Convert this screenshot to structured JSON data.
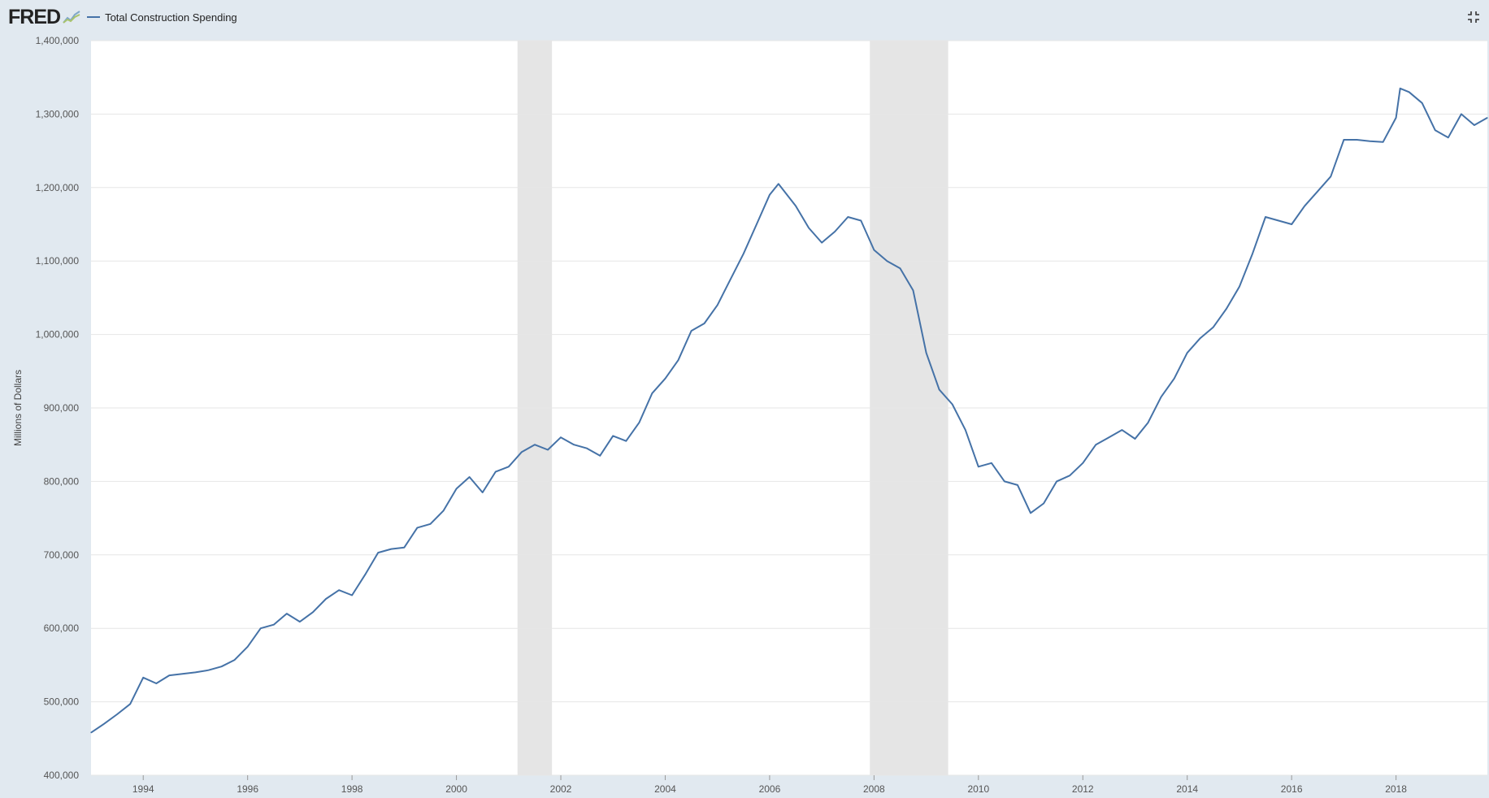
{
  "header": {
    "logo_text": "FRED",
    "logo_icon": "chart-trend-icon",
    "fullscreen_icon": "collapse-icon"
  },
  "colors": {
    "series": "#4572a7",
    "background": "#e1e9f0",
    "plot": "#ffffff",
    "recession": "#e5e5e5",
    "grid": "#e6e6e6"
  },
  "chart_data": {
    "type": "line",
    "title": "",
    "xlabel": "",
    "ylabel": "Millions of Dollars",
    "xlim": [
      1993.0,
      2019.75
    ],
    "ylim": [
      400000,
      1400000
    ],
    "yticks": [
      400000,
      500000,
      600000,
      700000,
      800000,
      900000,
      1000000,
      1100000,
      1200000,
      1300000,
      1400000
    ],
    "ytick_labels": [
      "400,000",
      "500,000",
      "600,000",
      "700,000",
      "800,000",
      "900,000",
      "1,000,000",
      "1,100,000",
      "1,200,000",
      "1,300,000",
      "1,400,000"
    ],
    "xticks": [
      1994,
      1996,
      1998,
      2000,
      2002,
      2004,
      2006,
      2008,
      2010,
      2012,
      2014,
      2016,
      2018
    ],
    "xtick_labels": [
      "1994",
      "1996",
      "1998",
      "2000",
      "2002",
      "2004",
      "2006",
      "2008",
      "2010",
      "2012",
      "2014",
      "2016",
      "2018"
    ],
    "grid": "horizontal",
    "legend": "top-left",
    "recessions": [
      [
        2001.17,
        2001.83
      ],
      [
        2007.92,
        2009.42
      ]
    ],
    "series": [
      {
        "name": "Total Construction Spending",
        "x": [
          1993.0,
          1993.25,
          1993.5,
          1993.75,
          1994.0,
          1994.25,
          1994.5,
          1994.75,
          1995.0,
          1995.25,
          1995.5,
          1995.75,
          1996.0,
          1996.25,
          1996.5,
          1996.75,
          1997.0,
          1997.25,
          1997.5,
          1997.75,
          1998.0,
          1998.25,
          1998.5,
          1998.75,
          1999.0,
          1999.25,
          1999.5,
          1999.75,
          2000.0,
          2000.25,
          2000.5,
          2000.75,
          2001.0,
          2001.25,
          2001.5,
          2001.75,
          2002.0,
          2002.25,
          2002.5,
          2002.75,
          2003.0,
          2003.25,
          2003.5,
          2003.75,
          2004.0,
          2004.25,
          2004.5,
          2004.75,
          2005.0,
          2005.25,
          2005.5,
          2005.75,
          2006.0,
          2006.17,
          2006.5,
          2006.75,
          2007.0,
          2007.25,
          2007.5,
          2007.75,
          2008.0,
          2008.25,
          2008.5,
          2008.75,
          2009.0,
          2009.25,
          2009.5,
          2009.75,
          2010.0,
          2010.25,
          2010.5,
          2010.75,
          2011.0,
          2011.25,
          2011.5,
          2011.75,
          2012.0,
          2012.25,
          2012.5,
          2012.75,
          2013.0,
          2013.25,
          2013.5,
          2013.75,
          2014.0,
          2014.25,
          2014.5,
          2014.75,
          2015.0,
          2015.25,
          2015.5,
          2015.75,
          2016.0,
          2016.25,
          2016.5,
          2016.75,
          2017.0,
          2017.25,
          2017.5,
          2017.75,
          2018.0,
          2018.08,
          2018.25,
          2018.5,
          2018.75,
          2019.0,
          2019.25,
          2019.5,
          2019.75
        ],
        "values": [
          458000,
          470000,
          483000,
          497000,
          533000,
          525000,
          536000,
          538000,
          540000,
          543000,
          548000,
          557000,
          575000,
          600000,
          605000,
          620000,
          609000,
          622000,
          640000,
          652000,
          645000,
          673000,
          703000,
          708000,
          710000,
          737000,
          742000,
          760000,
          790000,
          806000,
          785000,
          813000,
          820000,
          840000,
          850000,
          843000,
          860000,
          850000,
          845000,
          835000,
          862000,
          855000,
          880000,
          920000,
          940000,
          965000,
          1005000,
          1015000,
          1040000,
          1075000,
          1110000,
          1150000,
          1190000,
          1205000,
          1175000,
          1145000,
          1125000,
          1140000,
          1160000,
          1155000,
          1115000,
          1100000,
          1090000,
          1060000,
          975000,
          925000,
          905000,
          870000,
          820000,
          825000,
          800000,
          795000,
          757000,
          770000,
          800000,
          808000,
          825000,
          850000,
          860000,
          870000,
          858000,
          880000,
          915000,
          940000,
          975000,
          995000,
          1010000,
          1035000,
          1065000,
          1110000,
          1160000,
          1155000,
          1150000,
          1175000,
          1195000,
          1215000,
          1265000,
          1265000,
          1263000,
          1262000,
          1295000,
          1335000,
          1330000,
          1315000,
          1278000,
          1268000,
          1300000,
          1285000,
          1295000
        ]
      }
    ]
  }
}
